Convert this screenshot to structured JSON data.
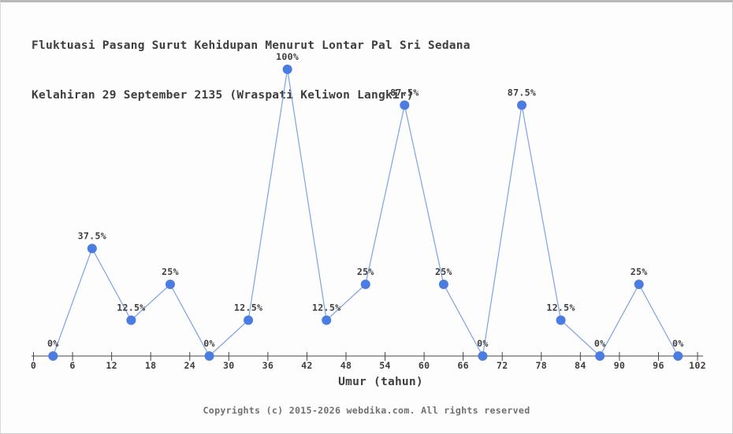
{
  "page": {
    "background": "#fdfdfd",
    "border_color": "#c9c9c9"
  },
  "header": {
    "title_line1": "Fluktuasi Pasang Surut Kehidupan Menurut Lontar Pal Sri Sedana",
    "title_line2": "Kelahiran 29 September 2135 (Wraspati Keliwon Langkir)"
  },
  "footer": {
    "copyright": "Copyrights (c) 2015-2026 webdika.com. All rights reserved"
  },
  "chart_data": {
    "type": "line",
    "title": "Fluktuasi Pasang Surut Kehidupan Menurut Lontar Pal Sri Sedana Kelahiran 29 September 2135 (Wraspati Keliwon Langkir)",
    "x": [
      3,
      9,
      15,
      21,
      27,
      33,
      39,
      45,
      51,
      57,
      63,
      69,
      75,
      81,
      87,
      93,
      99
    ],
    "values": [
      0,
      37.5,
      12.5,
      25,
      0,
      12.5,
      100,
      12.5,
      25,
      87.5,
      25,
      0,
      87.5,
      12.5,
      0,
      25,
      0
    ],
    "point_labels": [
      "0%",
      "37.5%",
      "12.5%",
      "25%",
      "0%",
      "12.5%",
      "100%",
      "12.5%",
      "25%",
      "87.5%",
      "25%",
      "0%",
      "87.5%",
      "12.5%",
      "0%",
      "25%",
      "0%"
    ],
    "xlabel": "Umur (tahun)",
    "x_ticks": [
      0,
      6,
      12,
      18,
      24,
      30,
      36,
      42,
      48,
      54,
      60,
      66,
      72,
      78,
      84,
      90,
      96,
      102
    ],
    "xlim": [
      0,
      102
    ],
    "ylim": [
      0,
      100
    ],
    "grid": false,
    "legend_position": "none",
    "line_color": "#7da2e6",
    "marker_color": "#4a7ce1",
    "axis_color": "#474747",
    "label_color": "#3e3e3e"
  }
}
